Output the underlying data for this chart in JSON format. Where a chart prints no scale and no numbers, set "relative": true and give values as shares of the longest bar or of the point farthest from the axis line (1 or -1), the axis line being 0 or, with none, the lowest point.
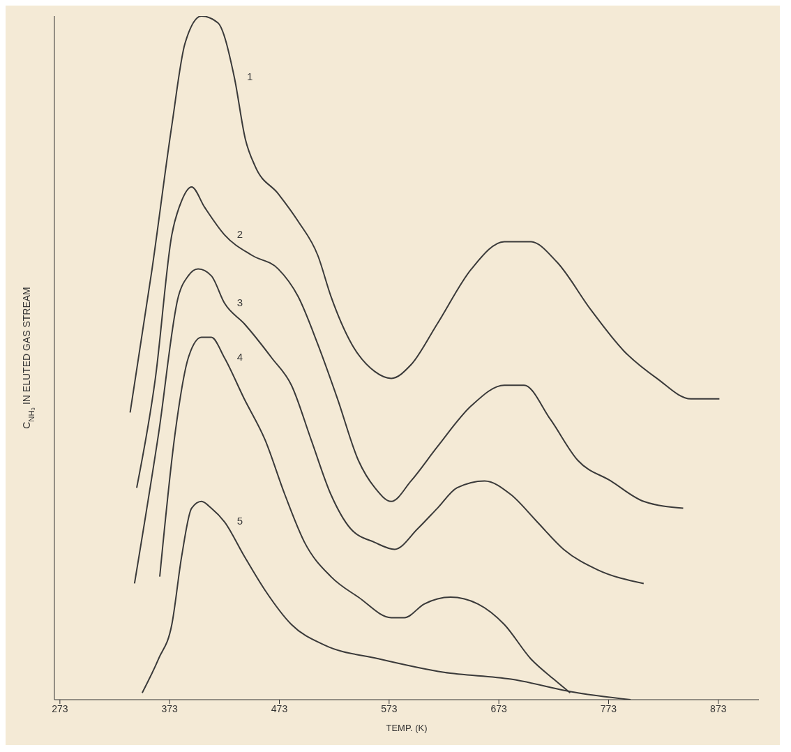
{
  "chart_data": {
    "type": "line",
    "relative": true,
    "xlabel": "TEMP. (K)",
    "ylabel": "C$_{NH₃}$ IN ELUTED GAS STREAM",
    "xlim": [
      268,
      910
    ],
    "xticks": [
      273,
      373,
      473,
      573,
      673,
      773,
      873
    ],
    "marker": "none",
    "grid": false,
    "legend": false,
    "series": [
      {
        "name": "1",
        "color": "#3a3a3a",
        "x": [
          337,
          357,
          375,
          387,
          402,
          417,
          432,
          442,
          451,
          472,
          490,
          508,
          520,
          539,
          560,
          575,
          593,
          617,
          648,
          678,
          702,
          726,
          757,
          787,
          817,
          848,
          874
        ],
        "values": [
          0.42,
          0.63,
          0.84,
          0.96,
          1.0,
          0.99,
          0.91,
          0.82,
          0.78,
          0.74,
          0.7,
          0.65,
          0.59,
          0.52,
          0.48,
          0.47,
          0.49,
          0.55,
          0.63,
          0.67,
          0.67,
          0.64,
          0.57,
          0.51,
          0.47,
          0.44,
          0.44
        ]
      },
      {
        "name": "2",
        "color": "#3a3a3a",
        "x": [
          343,
          360,
          375,
          384,
          393,
          405,
          423,
          448,
          472,
          490,
          508,
          526,
          545,
          560,
          575,
          593,
          617,
          648,
          678,
          696,
          720,
          745,
          775,
          805,
          841
        ],
        "values": [
          0.31,
          0.47,
          0.68,
          0.73,
          0.75,
          0.72,
          0.68,
          0.65,
          0.63,
          0.59,
          0.52,
          0.44,
          0.35,
          0.31,
          0.29,
          0.32,
          0.37,
          0.43,
          0.46,
          0.46,
          0.41,
          0.35,
          0.32,
          0.29,
          0.28
        ]
      },
      {
        "name": "3",
        "color": "#3a3a3a",
        "x": [
          341,
          363,
          381,
          390,
          399,
          411,
          423,
          441,
          466,
          484,
          502,
          520,
          538,
          560,
          578,
          599,
          617,
          635,
          660,
          684,
          708,
          732,
          763,
          805
        ],
        "values": [
          0.17,
          0.39,
          0.59,
          0.62,
          0.63,
          0.62,
          0.58,
          0.55,
          0.5,
          0.46,
          0.38,
          0.3,
          0.25,
          0.23,
          0.22,
          0.25,
          0.28,
          0.31,
          0.32,
          0.3,
          0.26,
          0.22,
          0.19,
          0.17
        ]
      },
      {
        "name": "4",
        "color": "#3a3a3a",
        "x": [
          364,
          378,
          390,
          402,
          411,
          423,
          441,
          460,
          478,
          496,
          520,
          545,
          575,
          587,
          605,
          629,
          654,
          678,
          702,
          723,
          738
        ],
        "values": [
          0.18,
          0.39,
          0.5,
          0.53,
          0.53,
          0.5,
          0.44,
          0.38,
          0.3,
          0.23,
          0.18,
          0.15,
          0.12,
          0.12,
          0.14,
          0.15,
          0.14,
          0.11,
          0.06,
          0.03,
          0.01
        ]
      },
      {
        "name": "5",
        "color": "#3a3a3a",
        "x": [
          348,
          363,
          375,
          384,
          393,
          402,
          411,
          423,
          441,
          460,
          484,
          514,
          563,
          623,
          684,
          745,
          793
        ],
        "values": [
          0.01,
          0.06,
          0.11,
          0.21,
          0.28,
          0.29,
          0.28,
          0.26,
          0.21,
          0.16,
          0.11,
          0.08,
          0.06,
          0.04,
          0.03,
          0.01,
          0.0
        ]
      }
    ]
  }
}
